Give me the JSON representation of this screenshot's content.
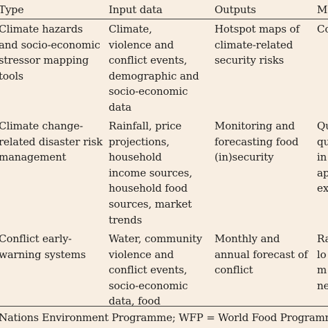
{
  "table": {
    "headers": [
      "Type",
      "Input data",
      "Outputs",
      "M"
    ],
    "rows": [
      {
        "type": "Climate hazards\nand socio-economic\nstressor mapping\ntools",
        "input": "Climate,\nviolence and\nconflict events,\ndemographic and\nsocio-economic\ndata",
        "outputs": "Hotspot maps of\nclimate-related\nsecurity risks",
        "m": "Co"
      },
      {
        "type": "Climate change-\nrelated disaster risk\nmanagement",
        "input": "Rainfall, price\nprojections,\nhousehold\nincome sources,\nhousehold food\nsources, market\ntrends",
        "outputs": "Monitoring and\nforecasting food\n(in)security",
        "m": "Qu\nqu\nin\nap\nex"
      },
      {
        "type": "Conflict early-\nwarning systems",
        "input": "Water, community\nviolence and\nconflict events,\nsocio-economic\ndata, food",
        "outputs": "Monthly and\nannual forecast of\nconflict",
        "m": "Ra\nlo\nm\nne"
      }
    ]
  },
  "footnote": "Nations Environment Programme; WFP = World Food Programme"
}
